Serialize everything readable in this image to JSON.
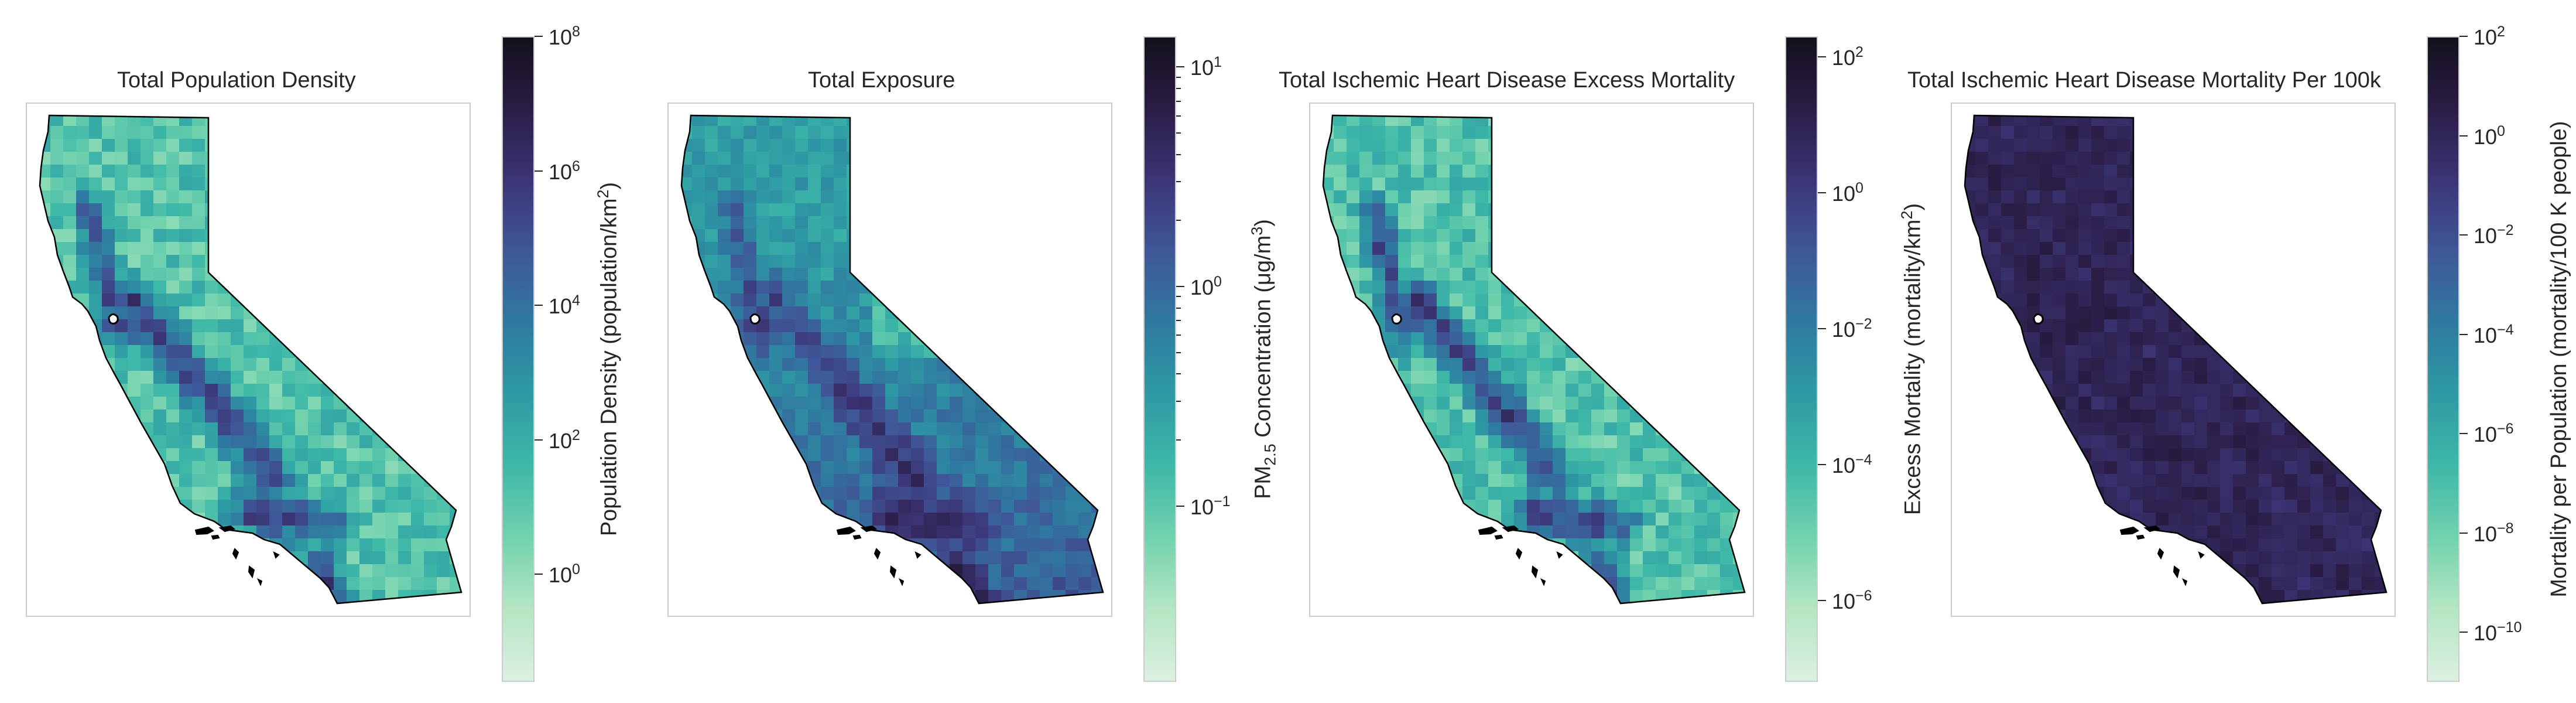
{
  "maps": [
    {
      "title": "Total Population Density",
      "colorbar_label": {
        "before": "Population Density (population/km",
        "sup": "2",
        "sub": "",
        "after": ")"
      },
      "scale": "log",
      "range_exponents": [
        -1.6,
        8
      ],
      "ticks": [
        {
          "base": "10",
          "exp": "0"
        },
        {
          "base": "10",
          "exp": "2"
        },
        {
          "base": "10",
          "exp": "4"
        },
        {
          "base": "10",
          "exp": "6"
        },
        {
          "base": "10",
          "exp": "8"
        }
      ],
      "tick_exponents": [
        0,
        2,
        4,
        6,
        8
      ],
      "minor_ticks": false,
      "colormap": [
        "#dcf0e0",
        "#b4e6c4",
        "#72d2ae",
        "#3eb8a8",
        "#2e9aa4",
        "#2f7aa0",
        "#3f5798",
        "#3c3576",
        "#2a1d46",
        "#14101c"
      ],
      "fill_variant": "green"
    },
    {
      "title": "Total Exposure",
      "colorbar_label": {
        "before": "PM",
        "sub": "2.5",
        "middle": " Concentration (μg/m",
        "sup": "3",
        "after": ")"
      },
      "scale": "log",
      "range_exponents": [
        -1.8,
        1.14
      ],
      "ticks": [
        {
          "base": "10",
          "exp": "−1"
        },
        {
          "base": "10",
          "exp": "0"
        },
        {
          "base": "10",
          "exp": "1"
        }
      ],
      "tick_exponents": [
        -1,
        0,
        1
      ],
      "minor_ticks": true,
      "colormap": [
        "#dcf0e0",
        "#b4e6c4",
        "#72d2ae",
        "#3eb8a8",
        "#2e9aa4",
        "#2f7aa0",
        "#3f5798",
        "#3c3576",
        "#2a1d46",
        "#14101c"
      ],
      "fill_variant": "exposure"
    },
    {
      "title": "Total Ischemic Heart Disease Excess Mortality",
      "colorbar_label": {
        "before": "Excess Mortality (mortality/km",
        "sup": "2",
        "sub": "",
        "after": ")"
      },
      "scale": "log",
      "range_exponents": [
        -7.2,
        2.3
      ],
      "ticks": [
        {
          "base": "10",
          "exp": "−6"
        },
        {
          "base": "10",
          "exp": "−4"
        },
        {
          "base": "10",
          "exp": "−2"
        },
        {
          "base": "10",
          "exp": "0"
        },
        {
          "base": "10",
          "exp": "2"
        }
      ],
      "tick_exponents": [
        -6,
        -4,
        -2,
        0,
        2
      ],
      "minor_ticks": false,
      "colormap": [
        "#dcf0e0",
        "#b4e6c4",
        "#72d2ae",
        "#3eb8a8",
        "#2e9aa4",
        "#2f7aa0",
        "#3f5798",
        "#3c3576",
        "#2a1d46",
        "#14101c"
      ],
      "fill_variant": "green"
    },
    {
      "title": "Total Ischemic Heart Disease Mortality Per 100k",
      "colorbar_label": {
        "before": "Mortality per Population (mortality/100 K people)",
        "sup": "",
        "sub": "",
        "after": ""
      },
      "scale": "log",
      "range_exponents": [
        -11,
        2
      ],
      "ticks": [
        {
          "base": "10",
          "exp": "−10"
        },
        {
          "base": "10",
          "exp": "−8"
        },
        {
          "base": "10",
          "exp": "−6"
        },
        {
          "base": "10",
          "exp": "−4"
        },
        {
          "base": "10",
          "exp": "−2"
        },
        {
          "base": "10",
          "exp": "0"
        },
        {
          "base": "10",
          "exp": "2"
        }
      ],
      "tick_exponents": [
        -10,
        -8,
        -6,
        -4,
        -2,
        0,
        2
      ],
      "minor_ticks": false,
      "colormap": [
        "#dcf0e0",
        "#b4e6c4",
        "#72d2ae",
        "#3eb8a8",
        "#2e9aa4",
        "#2f7aa0",
        "#3f5798",
        "#3c3576",
        "#2a1d46",
        "#14101c"
      ],
      "fill_variant": "dark"
    }
  ]
}
